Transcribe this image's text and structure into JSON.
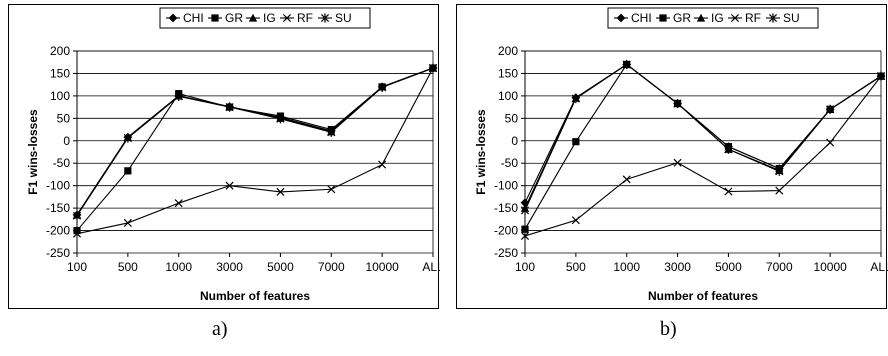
{
  "chart_data": [
    {
      "type": "line",
      "caption": "a)",
      "xlabel": "Number of features",
      "ylabel": "F1 wins-losses",
      "categories": [
        "100",
        "500",
        "1000",
        "3000",
        "5000",
        "7000",
        "10000",
        "ALL"
      ],
      "ylim": [
        -250,
        200
      ],
      "yticks": [
        -250,
        -200,
        -150,
        -100,
        -50,
        0,
        50,
        100,
        150,
        200
      ],
      "grid": true,
      "legend_position": "top",
      "series": [
        {
          "name": "CHI",
          "marker": "diamond",
          "values": [
            -165,
            8,
            100,
            76,
            52,
            22,
            120,
            162
          ]
        },
        {
          "name": "GR",
          "marker": "square",
          "values": [
            -200,
            -67,
            105,
            75,
            55,
            25,
            120,
            162
          ]
        },
        {
          "name": "IG",
          "marker": "triangle",
          "values": [
            -165,
            8,
            100,
            76,
            50,
            20,
            120,
            162
          ]
        },
        {
          "name": "RF",
          "marker": "x",
          "values": [
            -207,
            -183,
            -139,
            -100,
            -114,
            -108,
            -53,
            162
          ]
        },
        {
          "name": "SU",
          "marker": "star",
          "values": [
            -167,
            6,
            99,
            75,
            49,
            19,
            119,
            162
          ]
        }
      ]
    },
    {
      "type": "line",
      "caption": "b)",
      "xlabel": "Number of features",
      "ylabel": "F1 wins-losses",
      "categories": [
        "100",
        "500",
        "1000",
        "3000",
        "5000",
        "7000",
        "10000",
        "ALL"
      ],
      "ylim": [
        -250,
        200
      ],
      "yticks": [
        -250,
        -200,
        -150,
        -100,
        -50,
        0,
        50,
        100,
        150,
        200
      ],
      "grid": true,
      "legend_position": "top",
      "series": [
        {
          "name": "CHI",
          "marker": "diamond",
          "values": [
            -138,
            96,
            170,
            83,
            -13,
            -62,
            70,
            144
          ]
        },
        {
          "name": "GR",
          "marker": "square",
          "values": [
            -197,
            -2,
            170,
            83,
            -13,
            -62,
            70,
            144
          ]
        },
        {
          "name": "IG",
          "marker": "triangle",
          "values": [
            -150,
            95,
            170,
            83,
            -19,
            -66,
            70,
            144
          ]
        },
        {
          "name": "RF",
          "marker": "x",
          "values": [
            -212,
            -177,
            -86,
            -49,
            -113,
            -111,
            -4,
            144
          ]
        },
        {
          "name": "SU",
          "marker": "star",
          "values": [
            -155,
            94,
            170,
            83,
            -19,
            -68,
            70,
            144
          ]
        }
      ]
    }
  ]
}
